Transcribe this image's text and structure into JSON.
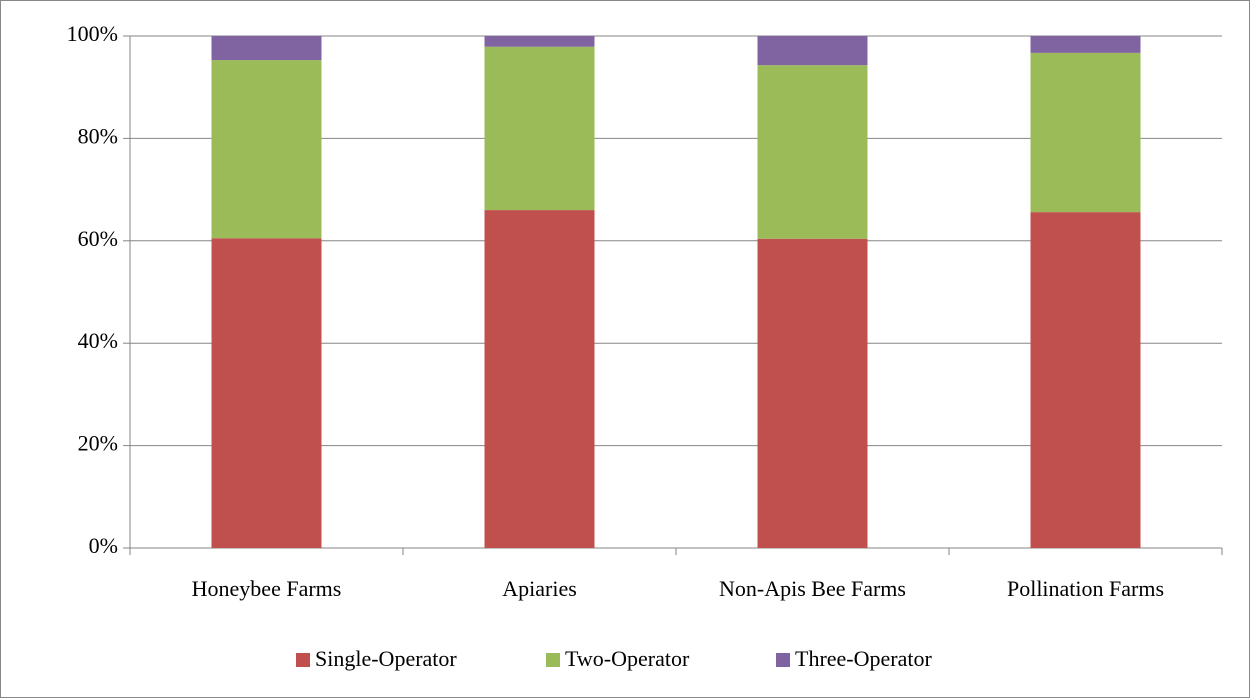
{
  "chart_data": {
    "type": "stacked_bar",
    "categories": [
      "Honeybee Farms",
      "Apiaries",
      "Non-Apis Bee Farms",
      "Pollination Farms"
    ],
    "series": [
      {
        "name": "Single-Operator",
        "color": "#c0504d",
        "values": [
          60.5,
          66.0,
          60.4,
          65.6
        ]
      },
      {
        "name": "Two-Operator",
        "color": "#9bbb59",
        "values": [
          34.8,
          31.9,
          33.9,
          31.1
        ]
      },
      {
        "name": "Three-Operator",
        "color": "#8064a2",
        "values": [
          4.7,
          2.1,
          5.7,
          3.3
        ]
      }
    ],
    "ylim": [
      0,
      100
    ],
    "yticks": [
      {
        "value": 0,
        "label": "0%"
      },
      {
        "value": 20,
        "label": "20%"
      },
      {
        "value": 40,
        "label": "40%"
      },
      {
        "value": 60,
        "label": "60%"
      },
      {
        "value": 80,
        "label": "80%"
      },
      {
        "value": 100,
        "label": "100%"
      }
    ],
    "grid": true,
    "legend": "bottom"
  }
}
